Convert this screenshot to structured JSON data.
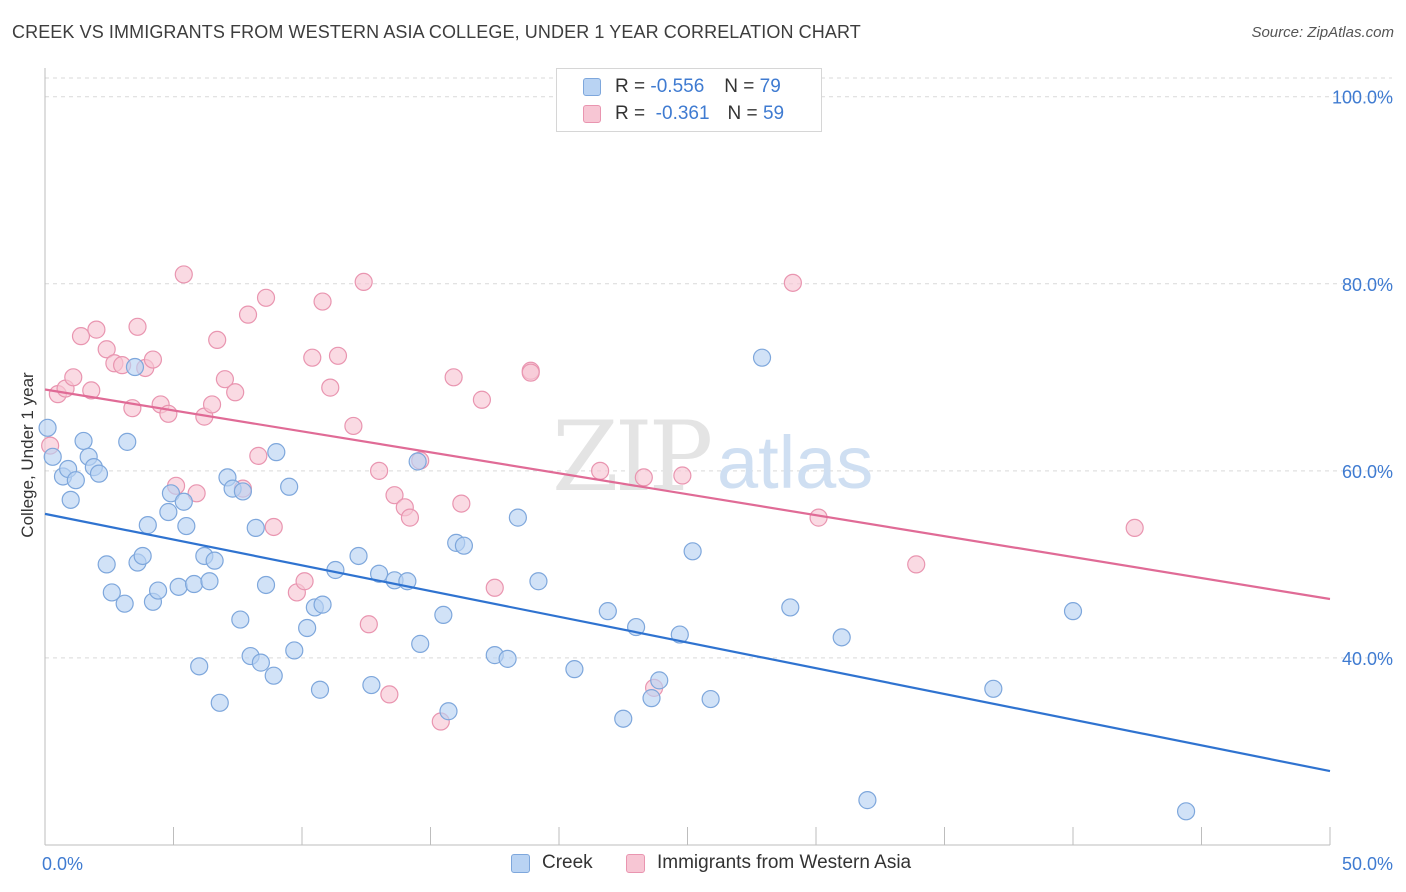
{
  "header": {
    "title": "CREEK VS IMMIGRANTS FROM WESTERN ASIA COLLEGE, UNDER 1 YEAR CORRELATION CHART",
    "source": "Source: ZipAtlas.com"
  },
  "watermark": {
    "zip": "ZIP",
    "atlas": "atlas"
  },
  "legend": {
    "rows": [
      {
        "r_label": "R =",
        "r_value": "-0.556",
        "n_label": "N =",
        "n_value": "79"
      },
      {
        "r_label": "R =",
        "r_value": "-0.361",
        "n_label": "N =",
        "n_value": "59"
      }
    ]
  },
  "bottom_legend": {
    "creek": "Creek",
    "immigrants": "Immigrants from Western Asia"
  },
  "colors": {
    "creek_fill": "#b9d3f3",
    "creek_stroke": "#7ea7dc",
    "creek_line": "#2f73d0",
    "imm_fill": "#f7c6d4",
    "imm_stroke": "#e995b0",
    "imm_line": "#e06b96",
    "axis_label": "#3f7bd1",
    "grid": "#d9d9d9"
  },
  "chart_data": {
    "type": "scatter",
    "title": "CREEK VS IMMIGRANTS FROM WESTERN ASIA COLLEGE, UNDER 1 YEAR CORRELATION CHART",
    "xlabel": "",
    "ylabel": "College, Under 1 year",
    "xlim": [
      0,
      50
    ],
    "ylim": [
      20,
      102
    ],
    "x_tick_labels": [
      "0.0%",
      "50.0%"
    ],
    "y_tick_labels": [
      "40.0%",
      "60.0%",
      "80.0%",
      "100.0%"
    ],
    "y_ticks": [
      40,
      60,
      80,
      100
    ],
    "grid": "horizontal dashed",
    "legend_position": "top-center",
    "series": [
      {
        "name": "Creek",
        "r": -0.556,
        "n": 79,
        "trend": {
          "x": [
            0,
            50
          ],
          "y": [
            55.4,
            27.9
          ]
        },
        "points": [
          [
            0.1,
            64.6
          ],
          [
            0.3,
            61.5
          ],
          [
            0.7,
            59.4
          ],
          [
            0.9,
            60.2
          ],
          [
            1.0,
            56.9
          ],
          [
            1.2,
            59.0
          ],
          [
            1.5,
            63.2
          ],
          [
            1.7,
            61.5
          ],
          [
            1.9,
            60.4
          ],
          [
            2.1,
            59.7
          ],
          [
            2.4,
            50.0
          ],
          [
            2.6,
            47.0
          ],
          [
            3.1,
            45.8
          ],
          [
            3.2,
            63.1
          ],
          [
            3.5,
            71.1
          ],
          [
            3.6,
            50.2
          ],
          [
            3.8,
            50.9
          ],
          [
            4.0,
            54.2
          ],
          [
            4.2,
            46.0
          ],
          [
            4.4,
            47.2
          ],
          [
            4.8,
            55.6
          ],
          [
            4.9,
            57.6
          ],
          [
            5.2,
            47.6
          ],
          [
            5.4,
            56.7
          ],
          [
            5.5,
            54.1
          ],
          [
            5.8,
            47.9
          ],
          [
            6.0,
            39.1
          ],
          [
            6.2,
            50.9
          ],
          [
            6.4,
            48.2
          ],
          [
            6.6,
            50.4
          ],
          [
            6.8,
            35.2
          ],
          [
            7.1,
            59.3
          ],
          [
            7.3,
            58.1
          ],
          [
            7.6,
            44.1
          ],
          [
            7.7,
            57.8
          ],
          [
            8.0,
            40.2
          ],
          [
            8.2,
            53.9
          ],
          [
            8.4,
            39.5
          ],
          [
            8.6,
            47.8
          ],
          [
            8.9,
            38.1
          ],
          [
            9.0,
            62.0
          ],
          [
            9.5,
            58.3
          ],
          [
            9.7,
            40.8
          ],
          [
            10.2,
            43.2
          ],
          [
            10.5,
            45.4
          ],
          [
            10.7,
            36.6
          ],
          [
            10.8,
            45.7
          ],
          [
            11.3,
            49.4
          ],
          [
            12.2,
            50.9
          ],
          [
            12.7,
            37.1
          ],
          [
            13.0,
            49.0
          ],
          [
            13.6,
            48.3
          ],
          [
            14.1,
            48.2
          ],
          [
            14.5,
            61.0
          ],
          [
            14.6,
            41.5
          ],
          [
            15.5,
            44.6
          ],
          [
            15.7,
            34.3
          ],
          [
            16.0,
            52.3
          ],
          [
            16.3,
            52.0
          ],
          [
            17.5,
            40.3
          ],
          [
            18.0,
            39.9
          ],
          [
            18.4,
            55.0
          ],
          [
            19.2,
            48.2
          ],
          [
            20.6,
            38.8
          ],
          [
            21.9,
            45.0
          ],
          [
            22.5,
            33.5
          ],
          [
            23.0,
            43.3
          ],
          [
            23.6,
            35.7
          ],
          [
            23.9,
            37.6
          ],
          [
            24.7,
            42.5
          ],
          [
            25.2,
            51.4
          ],
          [
            25.9,
            35.6
          ],
          [
            27.9,
            72.1
          ],
          [
            29.0,
            45.4
          ],
          [
            31.0,
            42.2
          ],
          [
            32.0,
            24.8
          ],
          [
            36.9,
            36.7
          ],
          [
            40.0,
            45.0
          ],
          [
            44.4,
            23.6
          ]
        ]
      },
      {
        "name": "Immigrants from Western Asia",
        "r": -0.361,
        "n": 59,
        "trend": {
          "x": [
            0,
            50
          ],
          "y": [
            68.7,
            46.3
          ]
        },
        "points": [
          [
            0.2,
            62.7
          ],
          [
            0.5,
            68.2
          ],
          [
            0.8,
            68.8
          ],
          [
            1.1,
            70.0
          ],
          [
            1.4,
            74.4
          ],
          [
            1.8,
            68.6
          ],
          [
            2.0,
            75.1
          ],
          [
            2.4,
            73.0
          ],
          [
            2.7,
            71.5
          ],
          [
            3.0,
            71.3
          ],
          [
            3.4,
            66.7
          ],
          [
            3.6,
            75.4
          ],
          [
            3.9,
            71.0
          ],
          [
            4.2,
            71.9
          ],
          [
            4.5,
            67.1
          ],
          [
            4.8,
            66.1
          ],
          [
            5.1,
            58.4
          ],
          [
            5.4,
            81.0
          ],
          [
            5.9,
            57.6
          ],
          [
            6.2,
            65.8
          ],
          [
            6.5,
            67.1
          ],
          [
            6.7,
            74.0
          ],
          [
            7.0,
            69.8
          ],
          [
            7.4,
            68.4
          ],
          [
            7.7,
            58.1
          ],
          [
            7.9,
            76.7
          ],
          [
            8.3,
            61.6
          ],
          [
            8.6,
            78.5
          ],
          [
            8.9,
            54.0
          ],
          [
            9.8,
            47.0
          ],
          [
            10.1,
            48.2
          ],
          [
            10.4,
            72.1
          ],
          [
            10.8,
            78.1
          ],
          [
            11.1,
            68.9
          ],
          [
            11.4,
            72.3
          ],
          [
            12.0,
            64.8
          ],
          [
            12.4,
            80.2
          ],
          [
            12.6,
            43.6
          ],
          [
            13.0,
            60.0
          ],
          [
            13.4,
            36.1
          ],
          [
            13.6,
            57.4
          ],
          [
            14.0,
            56.1
          ],
          [
            14.2,
            55.0
          ],
          [
            14.6,
            61.1
          ],
          [
            15.4,
            33.2
          ],
          [
            15.9,
            70.0
          ],
          [
            16.2,
            56.5
          ],
          [
            17.0,
            67.6
          ],
          [
            17.5,
            47.5
          ],
          [
            18.9,
            70.7
          ],
          [
            18.9,
            70.5
          ],
          [
            21.6,
            60.0
          ],
          [
            23.3,
            59.3
          ],
          [
            23.7,
            36.8
          ],
          [
            24.8,
            59.5
          ],
          [
            29.1,
            80.1
          ],
          [
            30.1,
            55.0
          ],
          [
            33.9,
            50.0
          ],
          [
            42.4,
            53.9
          ]
        ]
      }
    ]
  }
}
